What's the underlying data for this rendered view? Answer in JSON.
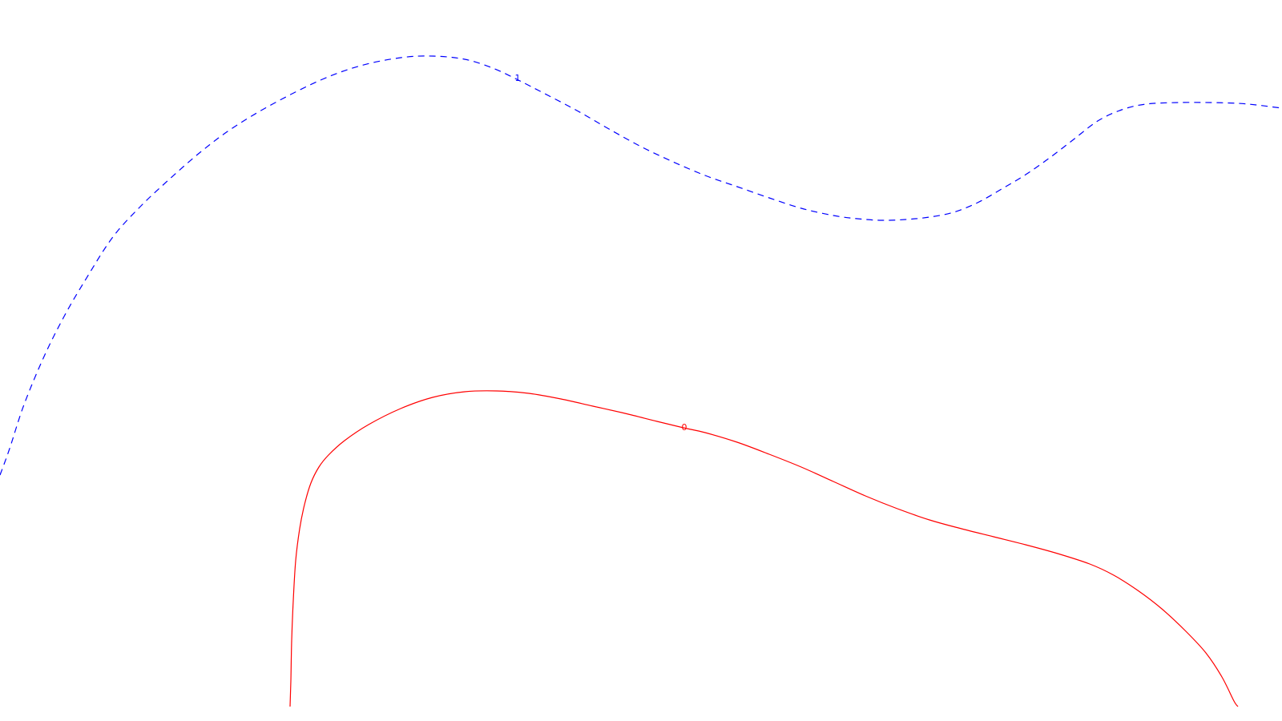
{
  "chart_data": {
    "type": "contour",
    "title": "",
    "xlabel": "",
    "ylabel": "",
    "grid": false,
    "legend": "none",
    "contours": [
      {
        "level_label": "1",
        "color": "#0000ff",
        "style": "dashed",
        "points": [
          [
            0,
            593
          ],
          [
            12,
            560
          ],
          [
            30,
            505
          ],
          [
            55,
            445
          ],
          [
            80,
            395
          ],
          [
            105,
            352
          ],
          [
            140,
            297
          ],
          [
            175,
            258
          ],
          [
            210,
            225
          ],
          [
            250,
            190
          ],
          [
            290,
            160
          ],
          [
            340,
            130
          ],
          [
            400,
            100
          ],
          [
            450,
            82
          ],
          [
            500,
            72
          ],
          [
            540,
            70
          ],
          [
            580,
            74
          ],
          [
            615,
            85
          ],
          [
            645,
            99
          ],
          [
            680,
            117
          ],
          [
            720,
            138
          ],
          [
            760,
            161
          ],
          [
            800,
            183
          ],
          [
            840,
            202
          ],
          [
            880,
            219
          ],
          [
            920,
            233
          ],
          [
            960,
            247
          ],
          [
            1000,
            260
          ],
          [
            1040,
            269
          ],
          [
            1070,
            273
          ],
          [
            1100,
            275
          ],
          [
            1130,
            274
          ],
          [
            1160,
            271
          ],
          [
            1190,
            265
          ],
          [
            1220,
            253
          ],
          [
            1250,
            236
          ],
          [
            1280,
            218
          ],
          [
            1310,
            197
          ],
          [
            1340,
            174
          ],
          [
            1370,
            151
          ],
          [
            1400,
            137
          ],
          [
            1430,
            130
          ],
          [
            1470,
            128
          ],
          [
            1510,
            128
          ],
          [
            1545,
            129
          ],
          [
            1568,
            131
          ],
          [
            1600,
            135
          ]
        ]
      },
      {
        "level_label": "0",
        "color": "#ff0000",
        "style": "solid",
        "points": [
          [
            362,
            882
          ],
          [
            363,
            850
          ],
          [
            364,
            800
          ],
          [
            366,
            750
          ],
          [
            369,
            700
          ],
          [
            374,
            660
          ],
          [
            380,
            630
          ],
          [
            388,
            603
          ],
          [
            398,
            583
          ],
          [
            410,
            568
          ],
          [
            430,
            550
          ],
          [
            460,
            530
          ],
          [
            500,
            510
          ],
          [
            540,
            496
          ],
          [
            580,
            489
          ],
          [
            620,
            488
          ],
          [
            660,
            491
          ],
          [
            700,
            498
          ],
          [
            740,
            507
          ],
          [
            780,
            516
          ],
          [
            820,
            526
          ],
          [
            853,
            534
          ],
          [
            880,
            540
          ],
          [
            920,
            552
          ],
          [
            960,
            567
          ],
          [
            1000,
            583
          ],
          [
            1040,
            601
          ],
          [
            1080,
            619
          ],
          [
            1120,
            635
          ],
          [
            1160,
            649
          ],
          [
            1200,
            660
          ],
          [
            1240,
            670
          ],
          [
            1280,
            680
          ],
          [
            1320,
            691
          ],
          [
            1360,
            704
          ],
          [
            1390,
            718
          ],
          [
            1420,
            737
          ],
          [
            1450,
            760
          ],
          [
            1480,
            788
          ],
          [
            1505,
            815
          ],
          [
            1525,
            845
          ],
          [
            1540,
            875
          ],
          [
            1545,
            882
          ]
        ]
      }
    ]
  }
}
